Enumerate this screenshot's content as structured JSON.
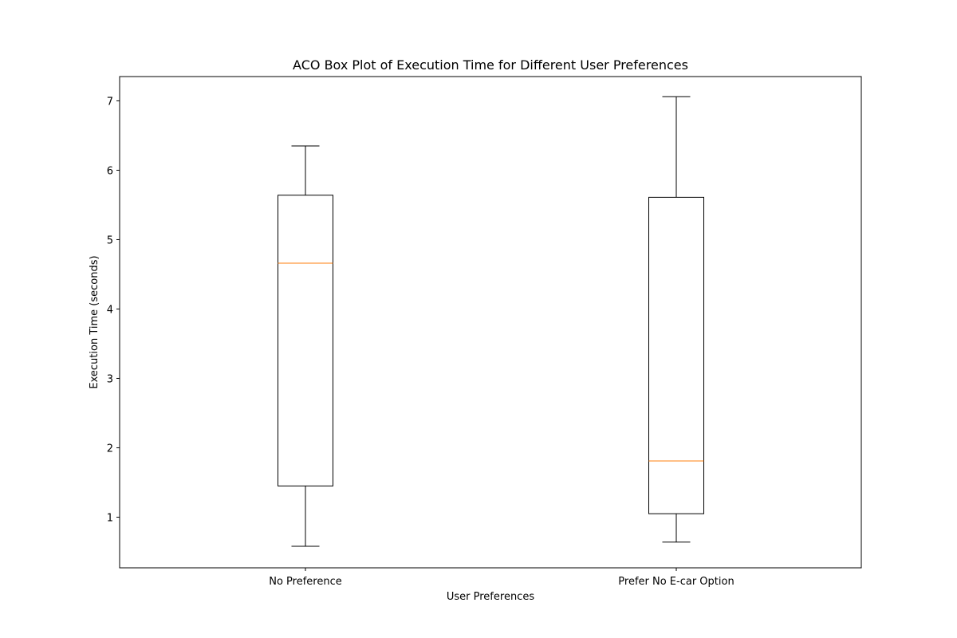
{
  "chart_data": {
    "type": "box",
    "title": "ACO Box Plot of Execution Time for Different User Preferences",
    "xlabel": "User Preferences",
    "ylabel": "Execution Time (seconds)",
    "ylim": [
      0.27,
      7.35
    ],
    "yticks": [
      1,
      2,
      3,
      4,
      5,
      6,
      7
    ],
    "grid": false,
    "categories": [
      "No Preference",
      "Prefer No E-car Option"
    ],
    "boxes": [
      {
        "category": "No Preference",
        "whisker_low": 0.58,
        "q1": 1.45,
        "median": 4.66,
        "q3": 5.64,
        "whisker_high": 6.35
      },
      {
        "category": "Prefer No E-car Option",
        "whisker_low": 0.64,
        "q1": 1.05,
        "median": 1.81,
        "q3": 5.61,
        "whisker_high": 7.06
      }
    ],
    "colors": {
      "box": "#000000",
      "median": "#ff7f0e",
      "axes": "#000000"
    }
  }
}
